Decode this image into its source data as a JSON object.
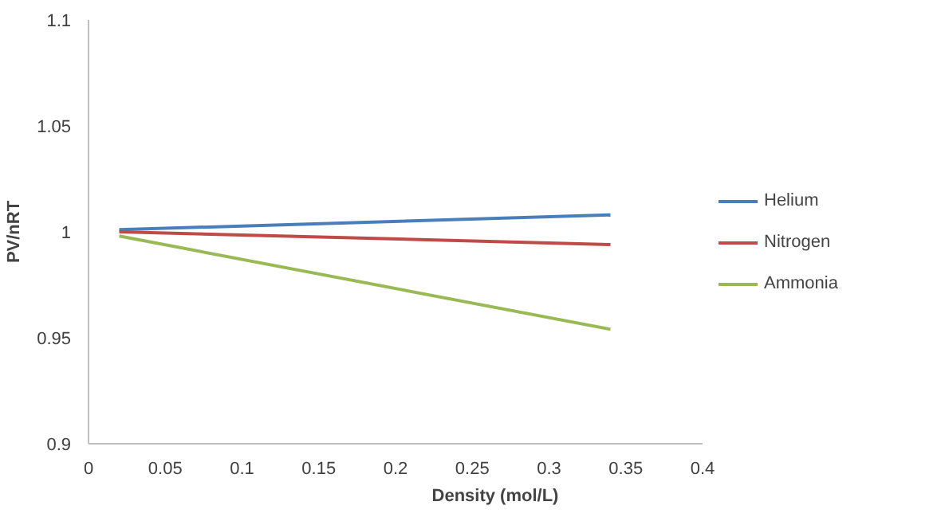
{
  "chart_data": {
    "type": "line",
    "xlabel": "Density (mol/L)",
    "ylabel": "PV/nRT",
    "x": [
      0.02,
      0.34
    ],
    "series": [
      {
        "name": "Helium",
        "color": "#4a7ebb",
        "values": [
          1.001,
          1.008
        ]
      },
      {
        "name": "Nitrogen",
        "color": "#be4b48",
        "values": [
          1.0,
          0.994
        ]
      },
      {
        "name": "Ammonia",
        "color": "#98b954",
        "values": [
          0.998,
          0.954
        ]
      }
    ],
    "xlim": [
      0,
      0.4
    ],
    "xticks": [
      0,
      0.05,
      0.1,
      0.15,
      0.2,
      0.25,
      0.3,
      0.35,
      0.4
    ],
    "ylim": [
      0.9,
      1.1
    ],
    "yticks": [
      0.9,
      0.95,
      1,
      1.05,
      1.1
    ],
    "grid": false,
    "legend": "right",
    "marker": "none",
    "line_style": "solid"
  }
}
